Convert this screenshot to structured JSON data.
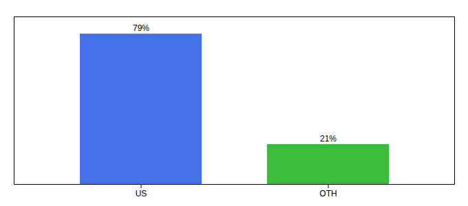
{
  "chart_data": {
    "type": "bar",
    "categories": [
      "US",
      "OTH"
    ],
    "values": [
      79,
      21
    ],
    "value_labels": [
      "79%",
      "21%"
    ],
    "colors": [
      "#4472e8",
      "#3dbb3d"
    ],
    "ylim": [
      0,
      88
    ],
    "data_labels": true,
    "tick_labels": "x",
    "grid": false
  }
}
